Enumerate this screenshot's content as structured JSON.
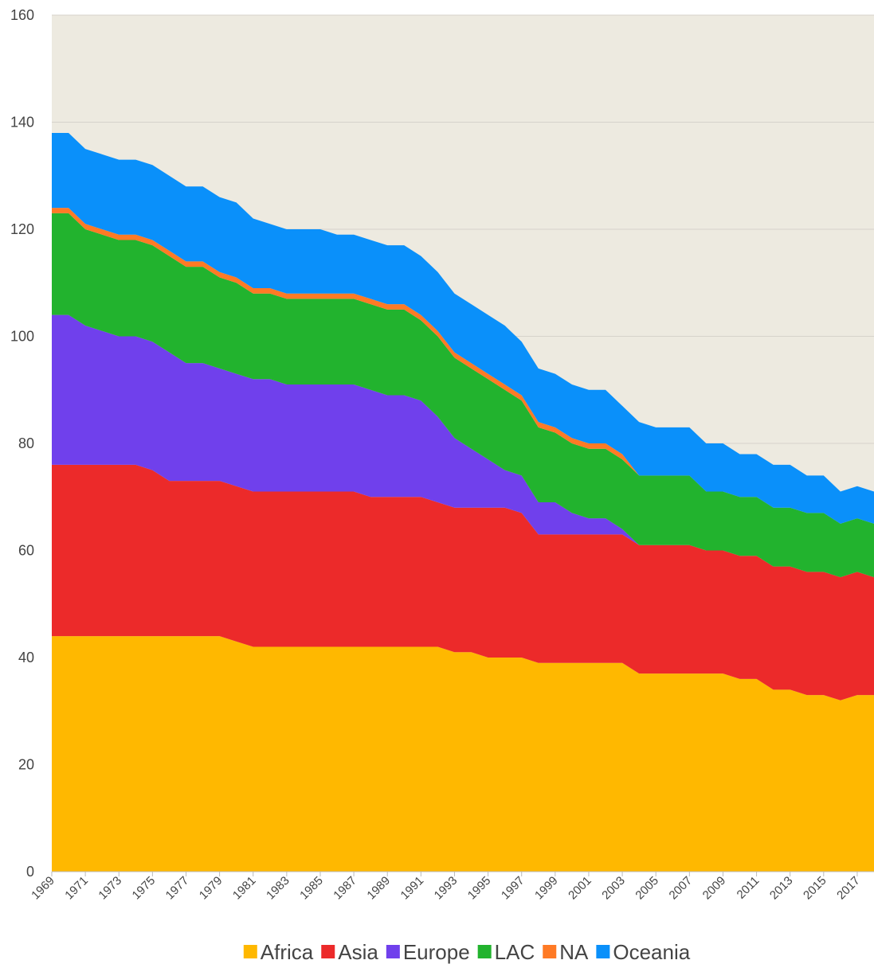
{
  "chart_data": {
    "type": "stacked_area",
    "x": [
      1969,
      1970,
      1971,
      1972,
      1973,
      1974,
      1975,
      1976,
      1977,
      1978,
      1979,
      1980,
      1981,
      1982,
      1983,
      1984,
      1985,
      1986,
      1987,
      1988,
      1989,
      1990,
      1991,
      1992,
      1993,
      1994,
      1995,
      1996,
      1997,
      1998,
      1999,
      2000,
      2001,
      2002,
      2003,
      2004,
      2005,
      2006,
      2007,
      2008,
      2009,
      2010,
      2011,
      2012,
      2013,
      2014,
      2015,
      2016,
      2017,
      2018
    ],
    "series": [
      {
        "name": "Africa",
        "color": "#ffb800",
        "values": [
          44,
          44,
          44,
          44,
          44,
          44,
          44,
          44,
          44,
          44,
          44,
          43,
          42,
          42,
          42,
          42,
          42,
          42,
          42,
          42,
          42,
          42,
          42,
          42,
          41,
          41,
          40,
          40,
          40,
          39,
          39,
          39,
          39,
          39,
          39,
          37,
          37,
          37,
          37,
          37,
          37,
          36,
          36,
          34,
          34,
          33,
          33,
          32,
          33,
          33
        ]
      },
      {
        "name": "Asia",
        "color": "#ec2a2a",
        "values": [
          32,
          32,
          32,
          32,
          32,
          32,
          31,
          29,
          29,
          29,
          29,
          29,
          29,
          29,
          29,
          29,
          29,
          29,
          29,
          28,
          28,
          28,
          28,
          27,
          27,
          27,
          28,
          28,
          27,
          24,
          24,
          24,
          24,
          24,
          24,
          24,
          24,
          24,
          24,
          23,
          23,
          23,
          23,
          23,
          23,
          23,
          23,
          23,
          23,
          22
        ]
      },
      {
        "name": "Europe",
        "color": "#7040ec",
        "values": [
          28,
          28,
          26,
          25,
          24,
          24,
          24,
          24,
          22,
          22,
          21,
          21,
          21,
          21,
          20,
          20,
          20,
          20,
          20,
          20,
          19,
          19,
          18,
          16,
          13,
          11,
          9,
          7,
          7,
          6,
          6,
          4,
          3,
          3,
          1,
          0,
          0,
          0,
          0,
          0,
          0,
          0,
          0,
          0,
          0,
          0,
          0,
          0,
          0,
          0
        ]
      },
      {
        "name": "LAC",
        "color": "#22b32e",
        "values": [
          19,
          19,
          18,
          18,
          18,
          18,
          18,
          18,
          18,
          18,
          17,
          17,
          16,
          16,
          16,
          16,
          16,
          16,
          16,
          16,
          16,
          16,
          15,
          15,
          15,
          15,
          15,
          15,
          14,
          14,
          13,
          13,
          13,
          13,
          13,
          13,
          13,
          13,
          13,
          11,
          11,
          11,
          11,
          11,
          11,
          11,
          11,
          10,
          10,
          10
        ]
      },
      {
        "name": "NA",
        "color": "#ff7a25",
        "values": [
          1,
          1,
          1,
          1,
          1,
          1,
          1,
          1,
          1,
          1,
          1,
          1,
          1,
          1,
          1,
          1,
          1,
          1,
          1,
          1,
          1,
          1,
          1,
          1,
          1,
          1,
          1,
          1,
          1,
          1,
          1,
          1,
          1,
          1,
          1,
          0,
          0,
          0,
          0,
          0,
          0,
          0,
          0,
          0,
          0,
          0,
          0,
          0,
          0,
          0
        ]
      },
      {
        "name": "Oceania",
        "color": "#0a90fa",
        "values": [
          14,
          14,
          14,
          14,
          14,
          14,
          14,
          14,
          14,
          14,
          14,
          14,
          13,
          12,
          12,
          12,
          12,
          11,
          11,
          11,
          11,
          11,
          11,
          11,
          11,
          11,
          11,
          11,
          10,
          10,
          10,
          10,
          10,
          10,
          9,
          10,
          9,
          9,
          9,
          9,
          9,
          8,
          8,
          8,
          8,
          7,
          7,
          6,
          6,
          6
        ]
      }
    ],
    "xlim": [
      1969,
      2018
    ],
    "xticks": [
      1969,
      1971,
      1973,
      1975,
      1977,
      1979,
      1981,
      1983,
      1985,
      1987,
      1989,
      1991,
      1993,
      1995,
      1997,
      1999,
      2001,
      2003,
      2005,
      2007,
      2009,
      2011,
      2013,
      2015,
      2017
    ],
    "ylim": [
      0,
      160
    ],
    "yticks": [
      0,
      20,
      40,
      60,
      80,
      100,
      120,
      140,
      160
    ],
    "grid": true,
    "legend": "bottom"
  }
}
